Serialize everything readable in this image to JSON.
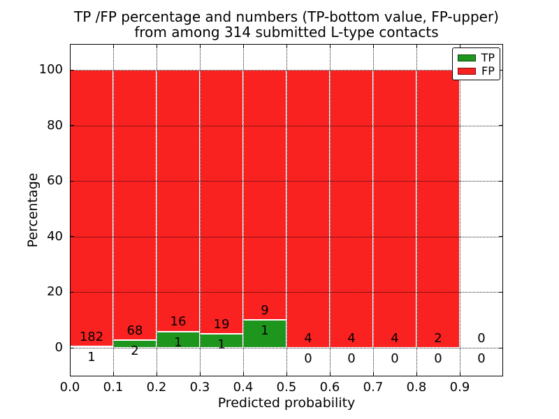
{
  "figure": {
    "title_line1": "TP /FP percentage and numbers (TP-bottom value, FP-upper)",
    "title_line2": "from among 314 submitted L-type contacts"
  },
  "chart_data": {
    "type": "bar",
    "stacked": true,
    "title": "TP /FP percentage and numbers (TP-bottom value, FP-upper) from among 314 submitted L-type contacts",
    "xlabel": "Predicted probability",
    "ylabel": "Percentage",
    "xlim": [
      0.0,
      1.0
    ],
    "ylim": [
      -10.3,
      109.3
    ],
    "grid": "dotted",
    "legend_position": "upper right",
    "total_contacts": 314,
    "series": [
      {
        "name": "TP",
        "color": "#1e961e"
      },
      {
        "name": "FP",
        "color": "#fa2121"
      }
    ],
    "x_ticks": [
      {
        "v": 0.0,
        "label": "0.0"
      },
      {
        "v": 0.1,
        "label": "0.1"
      },
      {
        "v": 0.2,
        "label": "0.2"
      },
      {
        "v": 0.3,
        "label": "0.3"
      },
      {
        "v": 0.4,
        "label": "0.4"
      },
      {
        "v": 0.5,
        "label": "0.5"
      },
      {
        "v": 0.6,
        "label": "0.6"
      },
      {
        "v": 0.7,
        "label": "0.7"
      },
      {
        "v": 0.8,
        "label": "0.8"
      },
      {
        "v": 0.9,
        "label": "0.9"
      }
    ],
    "y_ticks": [
      {
        "v": 0,
        "label": "0"
      },
      {
        "v": 20,
        "label": "20"
      },
      {
        "v": 40,
        "label": "40"
      },
      {
        "v": 60,
        "label": "60"
      },
      {
        "v": 80,
        "label": "80"
      },
      {
        "v": 100,
        "label": "100"
      }
    ],
    "bins": [
      {
        "range": [
          0.0,
          0.1
        ],
        "tp": 1,
        "fp": 182,
        "tp_pct": 0.55,
        "fp_pct": 99.45
      },
      {
        "range": [
          0.1,
          0.2
        ],
        "tp": 2,
        "fp": 68,
        "tp_pct": 2.86,
        "fp_pct": 97.14
      },
      {
        "range": [
          0.2,
          0.3
        ],
        "tp": 1,
        "fp": 16,
        "tp_pct": 5.88,
        "fp_pct": 94.12
      },
      {
        "range": [
          0.3,
          0.4
        ],
        "tp": 1,
        "fp": 19,
        "tp_pct": 5.0,
        "fp_pct": 95.0
      },
      {
        "range": [
          0.4,
          0.5
        ],
        "tp": 1,
        "fp": 9,
        "tp_pct": 10.0,
        "fp_pct": 90.0
      },
      {
        "range": [
          0.5,
          0.6
        ],
        "tp": 0,
        "fp": 4,
        "tp_pct": 0.0,
        "fp_pct": 100.0
      },
      {
        "range": [
          0.6,
          0.7
        ],
        "tp": 0,
        "fp": 4,
        "tp_pct": 0.0,
        "fp_pct": 100.0
      },
      {
        "range": [
          0.7,
          0.8
        ],
        "tp": 0,
        "fp": 4,
        "tp_pct": 0.0,
        "fp_pct": 100.0
      },
      {
        "range": [
          0.8,
          0.9
        ],
        "tp": 0,
        "fp": 2,
        "tp_pct": 0.0,
        "fp_pct": 100.0
      },
      {
        "range": [
          0.9,
          1.0
        ],
        "tp": 0,
        "fp": 0,
        "tp_pct": 0.0,
        "fp_pct": 0.0
      }
    ]
  }
}
